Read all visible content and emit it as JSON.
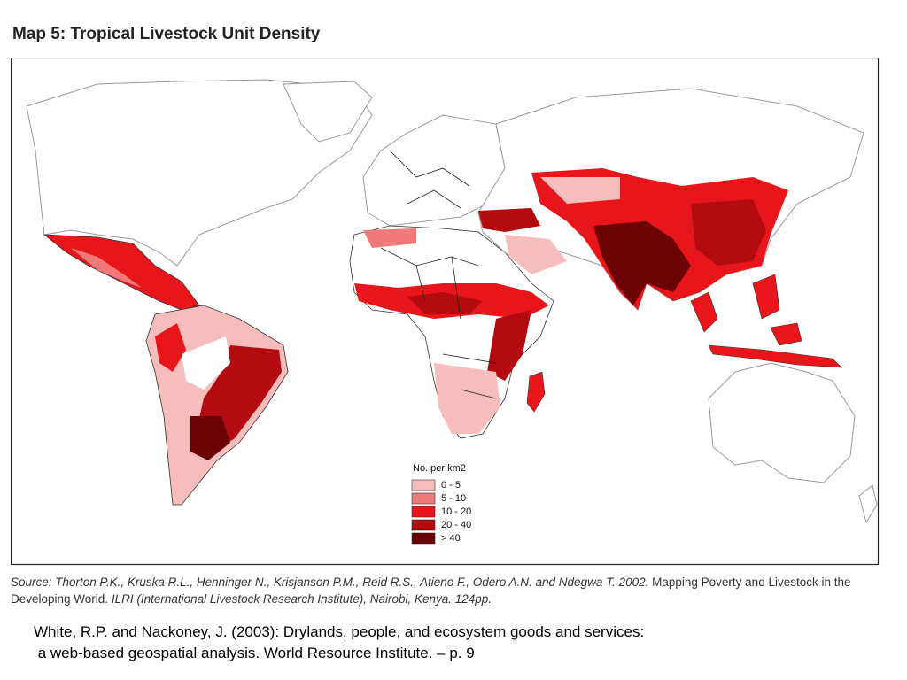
{
  "title": "Map 5: Tropical Livestock Unit Density",
  "legend": {
    "title": "No. per km2",
    "items": [
      {
        "label": "0 - 5",
        "color": "#f7bcbc"
      },
      {
        "label": "5 - 10",
        "color": "#f07a7a"
      },
      {
        "label": "10 - 20",
        "color": "#e8151b"
      },
      {
        "label": "20 - 40",
        "color": "#b30b0f"
      },
      {
        "label": "> 40",
        "color": "#6b0204"
      }
    ]
  },
  "source": [
    "Source: Thorton P.K., Kruska R.L., Henninger N., Krisjanson P.M., Reid R.S., Atieno F., Odero A.N. and Ndegwa T. 2002.",
    " Mapping Poverty and Livestock in the Developing World. ",
    "ILRI (International Livestock Research Institute), Nairobi, Kenya. 124pp."
  ],
  "citation": [
    "White, R.P. and Nackoney, J. (2003): Drylands, people, and ecosystem goods and services:",
    " a web-based geospatial analysis. World Resource Institute. – p. 9"
  ]
}
